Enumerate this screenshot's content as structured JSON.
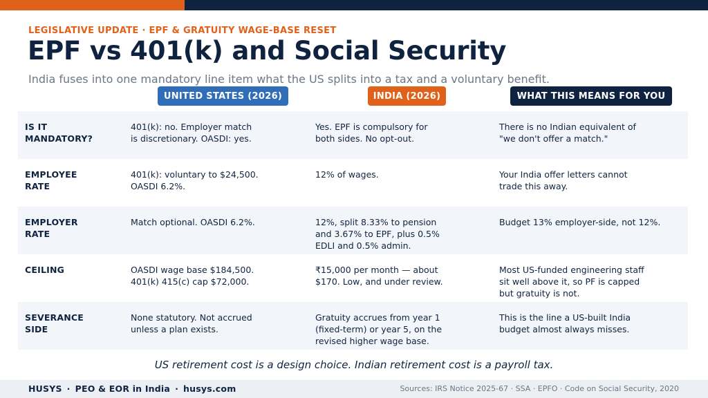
{
  "header": {
    "eyebrow": "LEGISLATIVE UPDATE · EPF & GRATUITY WAGE-BASE RESET",
    "title": "EPF vs 401(k) and Social Security",
    "subtitle": "India fuses into one mandatory line item what the US splits into a tax and a voluntary benefit."
  },
  "columns": {
    "us": "UNITED STATES (2026)",
    "india": "INDIA (2026)",
    "you": "WHAT THIS MEANS FOR YOU"
  },
  "colors": {
    "orange": "#e0611a",
    "navy": "#0f2340",
    "blue": "#2f6db8",
    "row_shade": "#f2f5f9"
  },
  "rows": [
    {
      "label": "IS IT\nMANDATORY?",
      "us": "401(k): no. Employer match\nis discretionary. OASDI: yes.",
      "india": "Yes. EPF is compulsory for\nboth sides. No opt-out.",
      "you": "There is no Indian equivalent of\n\"we don't offer a match.\""
    },
    {
      "label": "EMPLOYEE\nRATE",
      "us": "401(k): voluntary to $24,500.\nOASDI 6.2%.",
      "india": "12% of wages.",
      "you": "Your India offer letters cannot\ntrade this away."
    },
    {
      "label": "EMPLOYER\nRATE",
      "us": "Match optional. OASDI 6.2%.",
      "india": "12%, split 8.33% to pension\nand 3.67% to EPF, plus 0.5%\nEDLI and 0.5% admin.",
      "you": "Budget 13% employer-side, not 12%."
    },
    {
      "label": "CEILING",
      "us": "OASDI wage base $184,500.\n401(k) 415(c) cap $72,000.",
      "india": "₹15,000 per month — about\n$170. Low, and under review.",
      "you": "Most US-funded engineering staff\nsit well above it, so PF is capped\nbut gratuity is not."
    },
    {
      "label": "SEVERANCE\nSIDE",
      "us": "None statutory. Not accrued\nunless a plan exists.",
      "india": "Gratuity accrues from year 1\n(fixed-term) or year 5, on the\nrevised higher wage base.",
      "you": "This is the line a US-built India\nbudget almost always misses."
    }
  ],
  "tagline": "US retirement cost is a design choice. Indian retirement cost is a payroll tax.",
  "footer": {
    "brand_name": "HUSYS",
    "brand_separator": "·",
    "brand_service": "PEO & EOR in India",
    "brand_site": "husys.com",
    "sources": "Sources: IRS Notice 2025-67 · SSA · EPFO · Code on Social Security, 2020"
  }
}
